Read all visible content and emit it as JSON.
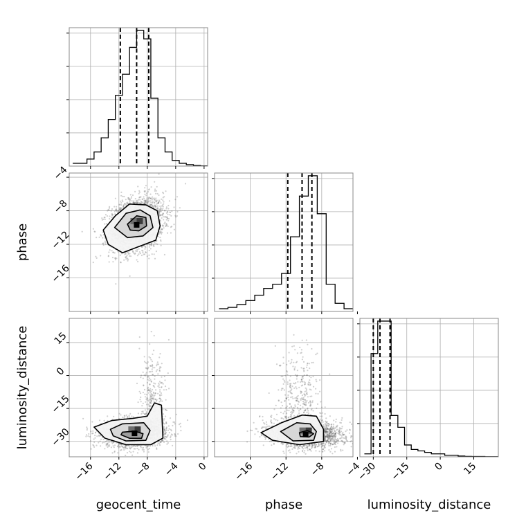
{
  "chart_data": {
    "type": "corner",
    "parameters": [
      "geocent_time",
      "phase",
      "luminosity_distance"
    ],
    "quantile_style": "dashed",
    "grid": true,
    "diagonal": [
      {
        "parameter": "geocent_time",
        "xlim": [
          -19,
          0.5
        ],
        "bin_edges": [
          -18.5,
          -17.5,
          -16.5,
          -15.5,
          -14.5,
          -13.5,
          -12.5,
          -11.5,
          -10.5,
          -9.5,
          -8.5,
          -7.5,
          -6.5,
          -5.5,
          -4.5,
          -3.5,
          -2.5,
          -1.5,
          -0.5,
          0.5
        ],
        "counts": [
          0.02,
          0.02,
          0.05,
          0.1,
          0.2,
          0.33,
          0.5,
          0.65,
          0.84,
          0.96,
          0.9,
          0.48,
          0.2,
          0.1,
          0.04,
          0.02,
          0.01,
          0.005,
          0.002
        ],
        "quantiles": [
          -11.8,
          -9.5,
          -7.8
        ]
      },
      {
        "parameter": "phase",
        "xlim": [
          -20,
          -4.5
        ],
        "bin_edges": [
          -19.5,
          -18.5,
          -17.5,
          -16.5,
          -15.5,
          -14.5,
          -13.5,
          -12.5,
          -11.5,
          -10.5,
          -9.5,
          -8.5,
          -7.5,
          -6.5,
          -5.5,
          -4.5
        ],
        "counts": [
          0.02,
          0.03,
          0.05,
          0.08,
          0.12,
          0.17,
          0.2,
          0.28,
          0.55,
          0.85,
          1.0,
          0.72,
          0.2,
          0.06,
          0.02
        ],
        "quantiles": [
          -11.8,
          -10.2,
          -9.1
        ]
      },
      {
        "parameter": "luminosity_distance",
        "xlim": [
          -36,
          26
        ],
        "bin_edges": [
          -34,
          -31,
          -28,
          -25,
          -22,
          -19,
          -16,
          -13,
          -10,
          -7,
          -4,
          -1,
          2,
          5,
          8,
          11,
          14,
          17,
          20,
          23,
          26
        ],
        "counts": [
          0.02,
          0.7,
          0.92,
          0.92,
          0.28,
          0.2,
          0.08,
          0.05,
          0.04,
          0.03,
          0.02,
          0.02,
          0.01,
          0.01,
          0.005,
          0.003,
          0.002,
          0.002,
          0.001,
          0.001
        ],
        "quantiles": [
          -30,
          -27,
          -22.5
        ]
      }
    ],
    "pairs": [
      {
        "x": "geocent_time",
        "y": "phase",
        "xlim": [
          -19,
          0.5
        ],
        "ylim": [
          -20,
          -3.5
        ],
        "center": [
          -9.5,
          -9.6
        ],
        "sd": [
          1.9,
          1.6
        ],
        "rho": 0.25,
        "contours": [
          [
            [
              -14.2,
              -10.3
            ],
            [
              -12.5,
              -8.6
            ],
            [
              -10.5,
              -7.2
            ],
            [
              -8.2,
              -7.3
            ],
            [
              -6.6,
              -8.0
            ],
            [
              -6.2,
              -9.8
            ],
            [
              -6.8,
              -11.5
            ],
            [
              -9.0,
              -12.2
            ],
            [
              -11.5,
              -13.0
            ],
            [
              -13.5,
              -12.0
            ]
          ],
          [
            [
              -12.6,
              -10.0
            ],
            [
              -11.0,
              -8.3
            ],
            [
              -9.0,
              -7.9
            ],
            [
              -7.6,
              -8.6
            ],
            [
              -7.2,
              -10.0
            ],
            [
              -8.6,
              -11.0
            ],
            [
              -10.8,
              -11.2
            ]
          ],
          [
            [
              -10.8,
              -9.6
            ],
            [
              -9.5,
              -8.6
            ],
            [
              -8.2,
              -8.8
            ],
            [
              -8.1,
              -9.8
            ],
            [
              -9.2,
              -10.4
            ],
            [
              -10.4,
              -10.3
            ]
          ]
        ]
      },
      {
        "x": "geocent_time",
        "y": "luminosity_distance",
        "xlim": [
          -19,
          0.5
        ],
        "ylim": [
          -37,
          26
        ],
        "center": [
          -9.8,
          -26.0
        ],
        "sd": [
          2.2,
          3.2
        ],
        "rho": 0.1,
        "tail": [
          -7.2,
          -16.0,
          0.9,
          9.0
        ],
        "contours": [
          [
            [
              -15.5,
              -23.5
            ],
            [
              -13.0,
              -20.5
            ],
            [
              -10.0,
              -19.5
            ],
            [
              -8.0,
              -18.5
            ],
            [
              -7.0,
              -12.5
            ],
            [
              -6.0,
              -13.5
            ],
            [
              -5.8,
              -28.5
            ],
            [
              -7.5,
              -31.5
            ],
            [
              -11.0,
              -31.5
            ],
            [
              -14.0,
              -28.5
            ]
          ],
          [
            [
              -13.2,
              -24.5
            ],
            [
              -11.5,
              -22.0
            ],
            [
              -8.5,
              -21.5
            ],
            [
              -7.6,
              -25.0
            ],
            [
              -8.2,
              -29.5
            ],
            [
              -11.0,
              -29.8
            ],
            [
              -12.8,
              -27.5
            ]
          ],
          [
            [
              -11.5,
              -25.8
            ],
            [
              -9.8,
              -25.3
            ],
            [
              -8.6,
              -26.5
            ],
            [
              -8.8,
              -28.6
            ],
            [
              -10.5,
              -28.6
            ],
            [
              -11.7,
              -27.0
            ]
          ]
        ]
      },
      {
        "x": "phase",
        "y": "luminosity_distance",
        "xlim": [
          -20,
          -4.5
        ],
        "ylim": [
          -37,
          26
        ],
        "center": [
          -9.8,
          -26.5
        ],
        "sd": [
          2.0,
          3.0
        ],
        "rho": -0.1,
        "tail": [
          -10.5,
          -15.0,
          1.2,
          8.0
        ],
        "contours": [
          [
            [
              -14.8,
              -26.0
            ],
            [
              -12.5,
              -21.5
            ],
            [
              -10.2,
              -18.0
            ],
            [
              -8.6,
              -18.5
            ],
            [
              -7.8,
              -24.5
            ],
            [
              -7.8,
              -30.0
            ],
            [
              -10.5,
              -31.5
            ],
            [
              -13.5,
              -29.5
            ]
          ],
          [
            [
              -12.6,
              -25.5
            ],
            [
              -10.8,
              -21.5
            ],
            [
              -9.3,
              -22.0
            ],
            [
              -8.6,
              -25.5
            ],
            [
              -8.9,
              -29.5
            ],
            [
              -11.2,
              -29.8
            ]
          ],
          [
            [
              -10.5,
              -26.0
            ],
            [
              -9.6,
              -25.0
            ],
            [
              -8.9,
              -26.5
            ],
            [
              -9.4,
              -28.0
            ],
            [
              -10.4,
              -27.8
            ]
          ]
        ]
      }
    ],
    "x_ticks": [
      {
        "values": [
          -16,
          -12,
          -8,
          -4,
          0
        ],
        "labels": [
          "−16",
          "−12",
          "−8",
          "−4",
          "0"
        ]
      },
      {
        "values": [
          -16,
          -12,
          -8,
          -4
        ],
        "labels": [
          "−16",
          "−12",
          "−8",
          "−4"
        ]
      },
      {
        "values": [
          -30,
          -15,
          0,
          15
        ],
        "labels": [
          "−30",
          "−15",
          "0",
          "15"
        ]
      }
    ],
    "y_ticks": {
      "phase": {
        "values": [
          -16,
          -12,
          -8,
          -4
        ],
        "labels": [
          "−16",
          "−12",
          "−8",
          "−4"
        ]
      },
      "luminosity_distance": {
        "values": [
          -30,
          -15,
          0,
          15
        ],
        "labels": [
          "−30",
          "−15",
          "0",
          "15"
        ]
      }
    },
    "xlabels": [
      "geocent_time",
      "phase",
      "luminosity_distance"
    ],
    "ylabels": [
      "phase",
      "luminosity_distance"
    ]
  }
}
